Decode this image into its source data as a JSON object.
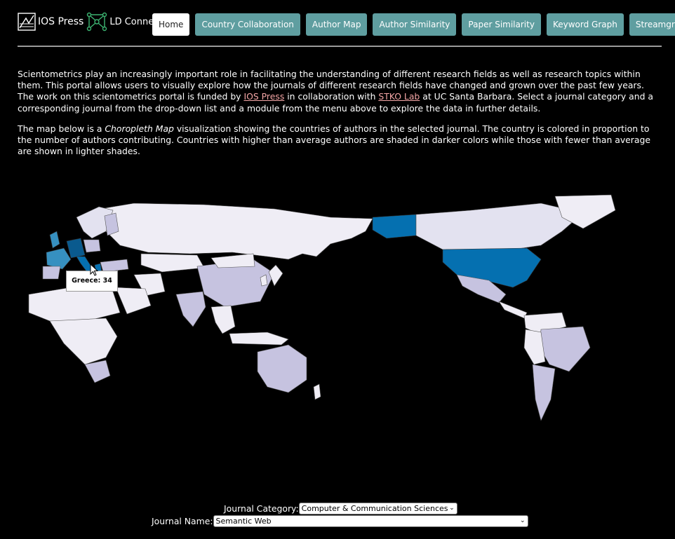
{
  "header": {
    "logo_text": "IOS Press",
    "logo_ld": "LD Connect",
    "nav": [
      {
        "label": "Home"
      },
      {
        "label": "Country Collaboration"
      },
      {
        "label": "Author Map"
      },
      {
        "label": "Author Similarity"
      },
      {
        "label": "Paper Similarity"
      },
      {
        "label": "Keyword Graph"
      },
      {
        "label": "Streamgraph"
      }
    ]
  },
  "intro": {
    "p1_a": "Scientometrics play an increasingly important role in facilitating the understanding of different research fields as well as research topics within them. This portal allows users to visually explore how the journals of different research fields have changed and grown over the past few years. The work on this scientometrics portal is funded by ",
    "p1_link1": "IOS Press",
    "p1_b": " in collaboration with ",
    "p1_link2": "STKO Lab",
    "p1_c": " at UC Santa Barbara. Select a journal category and a corresponding journal from the drop-down list and a module from the menu above to explore the data in further details.",
    "p2_a": "The map below is a ",
    "p2_em": "Choropleth Map",
    "p2_b": " visualization showing the countries of authors in the selected journal. The country is colored in proportion to the number of authors contributing. Countries with higher than average authors are shaded in darker colors while those with fewer than average are shown in lighter shades."
  },
  "map": {
    "tooltip": "Greece: 34",
    "colors": {
      "high": "#0570b0",
      "mid": "#3690c0",
      "low": "#c6c3e0",
      "lowest": "#efedf5"
    }
  },
  "controls": {
    "category_label": "Journal Category:",
    "category_value": "Computer & Communication Sciences",
    "journal_label": "Journal Name:",
    "journal_value": "Semantic Web"
  }
}
